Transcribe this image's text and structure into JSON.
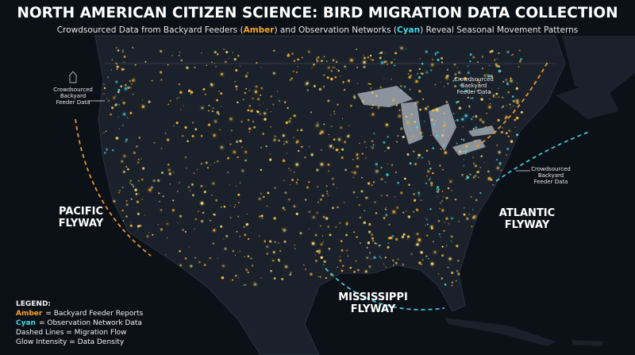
{
  "header": {
    "title": "NORTH AMERICAN CITIZEN SCIENCE: BIRD MIGRATION DATA COLLECTION",
    "subtitle": [
      "Crowdsourced Data from Backyard Feeders (",
      "Amber",
      ") and Observation Networks (",
      "Cyan",
      ") Reveal Seasonal Movement Patterns"
    ]
  },
  "flyways": [
    {
      "lines": [
        "PACIFIC",
        "FLYWAY"
      ]
    },
    {
      "lines": [
        "MISSISSIPPI",
        "FLYWAY"
      ]
    },
    {
      "lines": [
        "ATLANTIC",
        "FLYWAY"
      ]
    }
  ],
  "callouts": [
    {
      "lines": [
        "Crowdsourced",
        "Backyard",
        "Feeder Data"
      ]
    },
    {
      "lines": [
        "Crowdsourced",
        "Backyard",
        "Feeder Data"
      ]
    },
    {
      "lines": [
        "Crowdsourced",
        "Backyard",
        "Feeder Data"
      ]
    }
  ],
  "legend": {
    "title": "LEGEND:",
    "items": [
      {
        "key": "Amber",
        "text": "= Backyard Feeder Reports"
      },
      {
        "key": "Cyan",
        "text": "= Observation Network Data"
      },
      {
        "text": "Dashed Lines = Migration Flow"
      },
      {
        "text": "Glow Intensity = Data Density"
      }
    ]
  }
}
